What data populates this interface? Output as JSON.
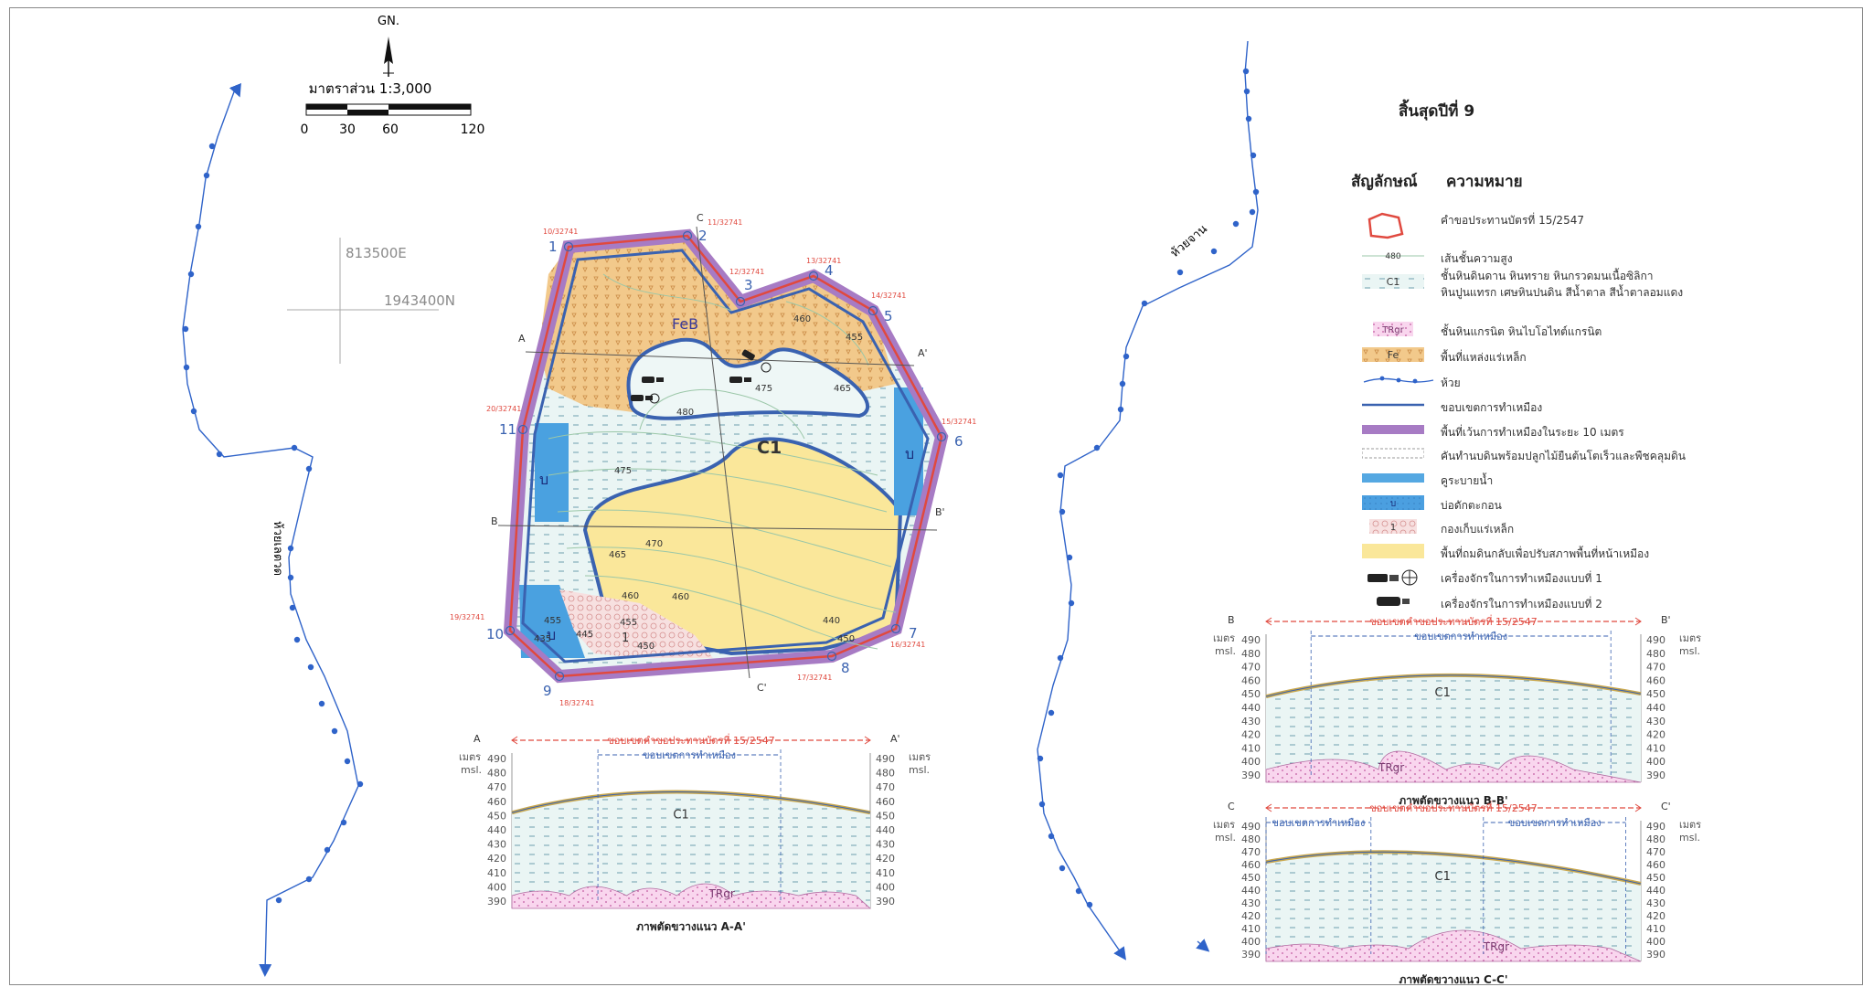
{
  "north": {
    "label": "GN."
  },
  "scale": {
    "title": "มาตราส่วน 1:3,000",
    "ticks": [
      "0",
      "30",
      "60",
      "120"
    ]
  },
  "coords": {
    "easting": "813500E",
    "northing": "1943400N"
  },
  "streams": {
    "left_name": "ห้วยเลตวด",
    "right_name": "ห้วยจาน"
  },
  "map_labels": {
    "feb": "FeB",
    "c1": "C1",
    "u1": "บ",
    "u2": "บ",
    "u3": "บ",
    "stock": "1",
    "c_top": "C",
    "c_bottom": "C'",
    "a": "A",
    "a_prime": "A'",
    "b": "B",
    "b_prime": "B'",
    "contours": [
      "460",
      "455",
      "475",
      "465",
      "480",
      "475",
      "470",
      "465",
      "460",
      "440",
      "450",
      "455",
      "450",
      "445",
      "455",
      "460",
      "435"
    ]
  },
  "corner_points": [
    {
      "num": "1",
      "code": "10/32741"
    },
    {
      "num": "2",
      "code": "11/32741"
    },
    {
      "num": "3",
      "code": "12/32741"
    },
    {
      "num": "4",
      "code": "13/32741"
    },
    {
      "num": "5",
      "code": "14/32741"
    },
    {
      "num": "6",
      "code": "15/32741"
    },
    {
      "num": "7",
      "code": "16/32741"
    },
    {
      "num": "8",
      "code": "17/32741"
    },
    {
      "num": "9",
      "code": "18/32741"
    },
    {
      "num": "10",
      "code": "19/32741"
    },
    {
      "num": "11",
      "code": "20/32741"
    }
  ],
  "legend": {
    "title": "สิ้นสุดปีที่ 9",
    "col_symbol": "สัญลักษณ์",
    "col_meaning": "ความหมาย",
    "items": [
      {
        "symbol": "boundary",
        "text": "คำขอประทานบัตรที่ 15/2547"
      },
      {
        "symbol": "contour",
        "label": "480",
        "text": "เส้นชั้นความสูง"
      },
      {
        "symbol": "c1",
        "label": "C1",
        "text": "ชั้นหินดินดาน หินทราย หินกรวดมนเนื้อซิลิกา",
        "text2": "หินปูนแทรก เศษหินปนดิน สีน้ำตาล สีน้ำตาลอมแดง"
      },
      {
        "symbol": "tr",
        "label": "TRgr",
        "text": "ชั้นหินแกรนิต หินไบโอไทต์แกรนิต"
      },
      {
        "symbol": "fe",
        "label": "Fe",
        "text": "พื้นที่แหล่งแร่เหล็ก"
      },
      {
        "symbol": "stream",
        "text": "ห้วย"
      },
      {
        "symbol": "mineline",
        "text": "ขอบเขตการทำเหมือง"
      },
      {
        "symbol": "buffer",
        "text": "พื้นที่เว้นการทำเหมืองในระยะ 10 เมตร"
      },
      {
        "symbol": "dyke",
        "text": "คันทำนบดินพร้อมปลูกไม้ยืนต้นโตเร็วและพืชคลุมดิน"
      },
      {
        "symbol": "ditch",
        "text": "คูระบายน้ำ"
      },
      {
        "symbol": "pond",
        "label": "บ",
        "text": "บ่อดักตะกอน"
      },
      {
        "symbol": "stockpile",
        "label": "1",
        "text": "กองเก็บแร่เหล็ก"
      },
      {
        "symbol": "fill",
        "text": "พื้นที่ถมดินกลับเพื่อปรับสภาพพื้นที่หน้าเหมือง"
      },
      {
        "symbol": "machine1",
        "text": "เครื่องจักรในการทำเหมืองแบบที่ 1"
      },
      {
        "symbol": "machine2",
        "text": "เครื่องจักรในการทำเหมืองแบบที่ 2"
      }
    ]
  },
  "sections": {
    "unit_left": "เมตร",
    "unit_left2": "msl.",
    "unit_right": "เมตร",
    "unit_right2": "msl.",
    "elev_ticks": [
      "490",
      "480",
      "470",
      "460",
      "450",
      "440",
      "430",
      "420",
      "410",
      "400",
      "390"
    ],
    "permit_label": "ขอบเขตคำขอประทานบัตรที่ 15/2547",
    "mine_label": "ขอบเขตการทำเหมือง",
    "c1": "C1",
    "tr": "TRgr",
    "aa": {
      "left": "A",
      "right": "A'",
      "caption": "ภาพตัดขวางแนว A-A'"
    },
    "bb": {
      "left": "B",
      "right": "B'",
      "caption": "ภาพตัดขวางแนว B-B'"
    },
    "cc": {
      "left": "C",
      "right": "C'",
      "caption": "ภาพตัดขวางแนว C-C'"
    }
  },
  "colors": {
    "fe": "#f2c98b",
    "fill": "#fae79a",
    "c1": "#e9f5f5",
    "tr": "#f8d5ec",
    "mine": "#3a62b0",
    "buffer": "#a77bc4",
    "permit": "#e0493f",
    "ditch": "#55a8e2",
    "stream": "#2f63c9"
  }
}
